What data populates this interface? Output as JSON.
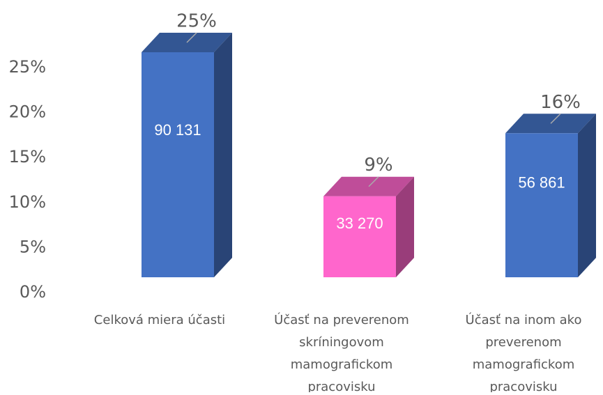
{
  "chart_data": {
    "type": "bar3d",
    "categories": [
      [
        "Celková miera účasti"
      ],
      [
        "Účasť na preverenom",
        "skríningovom",
        "mamografickom",
        "pracovisku"
      ],
      [
        "Účasť na inom ako",
        "preverenom",
        "mamografickom",
        "pracovisku"
      ]
    ],
    "values": [
      25,
      9,
      16
    ],
    "value_labels": [
      "25%",
      "9%",
      "16%"
    ],
    "inner_labels": [
      "90 131",
      "33 270",
      "56 861"
    ],
    "colors": [
      "#4472c4",
      "#ff66cc",
      "#4472c4"
    ],
    "ylim": [
      0,
      25
    ],
    "yticks": [
      {
        "value": 0,
        "label": "0%"
      },
      {
        "value": 5,
        "label": "5%"
      },
      {
        "value": 10,
        "label": "10%"
      },
      {
        "value": 15,
        "label": "15%"
      },
      {
        "value": 20,
        "label": "20%"
      },
      {
        "value": 25,
        "label": "25%"
      }
    ]
  }
}
